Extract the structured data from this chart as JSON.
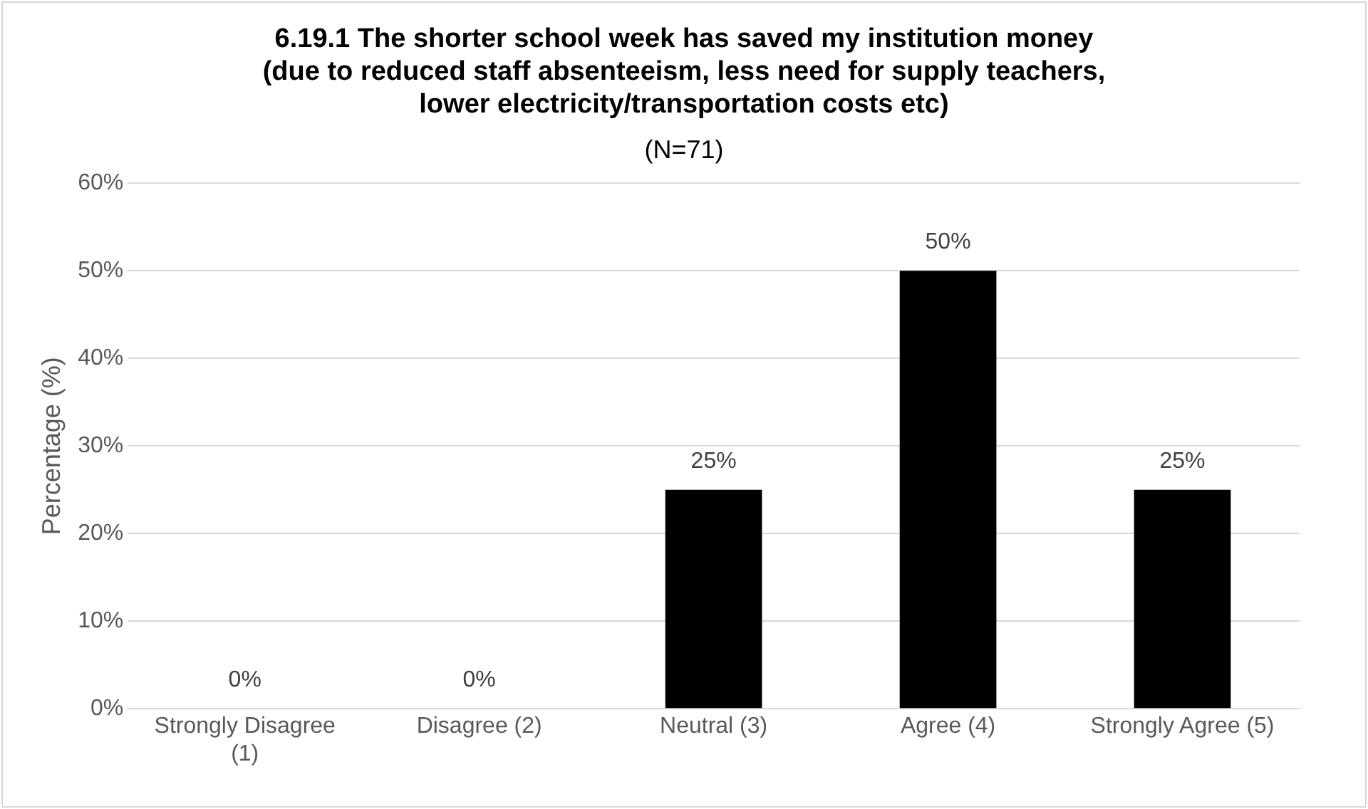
{
  "chart_data": {
    "type": "bar",
    "title": "6.19.1 The shorter school week has saved my institution money (due to reduced staff absenteeism, less need for supply teachers, lower electricity/transportation costs etc)",
    "subtitle": "(N=71)",
    "ylabel": "Percentage (%)",
    "categories": [
      "Strongly Disagree (1)",
      "Disagree (2)",
      "Neutral (3)",
      "Agree (4)",
      "Strongly Agree (5)"
    ],
    "values": [
      0,
      0,
      25,
      50,
      25
    ],
    "value_labels": [
      "0%",
      "0%",
      "25%",
      "50%",
      "25%"
    ],
    "color": "#000000",
    "ylim": [
      0,
      60
    ],
    "yticks": [
      {
        "value": 0,
        "label": "0%"
      },
      {
        "value": 10,
        "label": "10%"
      },
      {
        "value": 20,
        "label": "20%"
      },
      {
        "value": 30,
        "label": "30%"
      },
      {
        "value": 40,
        "label": "40%"
      },
      {
        "value": 50,
        "label": "50%"
      },
      {
        "value": 60,
        "label": "60%"
      }
    ],
    "grid": "y",
    "legend": false
  }
}
